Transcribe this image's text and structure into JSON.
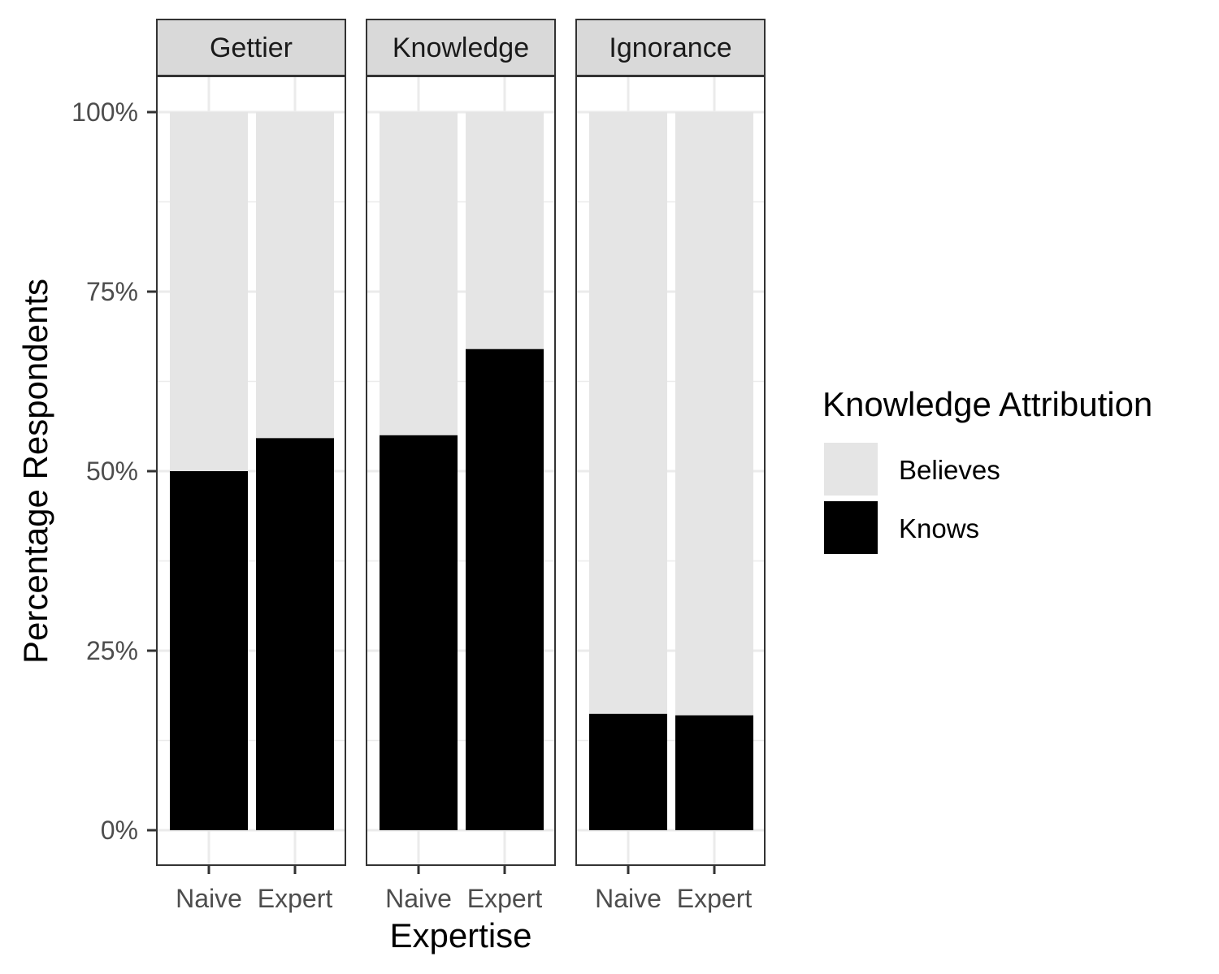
{
  "chart_data": {
    "type": "bar",
    "stacked": true,
    "facets": [
      "Gettier",
      "Knowledge",
      "Ignorance"
    ],
    "categories": [
      "Naive",
      "Expert"
    ],
    "xlabel": "Expertise",
    "ylabel": "Percentage Respondents",
    "ylim": [
      0,
      100
    ],
    "yticks": [
      "0%",
      "25%",
      "50%",
      "75%",
      "100%"
    ],
    "ytick_values": [
      0,
      25,
      50,
      75,
      100
    ],
    "legend": {
      "title": "Knowledge Attribution",
      "position": "right",
      "entries": [
        {
          "label": "Believes",
          "color": "#e5e5e5"
        },
        {
          "label": "Knows",
          "color": "#000000"
        }
      ]
    },
    "series": [
      {
        "name": "Knows",
        "color": "#000000",
        "values": {
          "Gettier": [
            50.0,
            54.6
          ],
          "Knowledge": [
            55.0,
            67.0
          ],
          "Ignorance": [
            16.2,
            16.0
          ]
        }
      },
      {
        "name": "Believes",
        "color": "#e5e5e5",
        "values": {
          "Gettier": [
            50.0,
            45.4
          ],
          "Knowledge": [
            45.0,
            33.0
          ],
          "Ignorance": [
            83.8,
            84.0
          ]
        }
      }
    ],
    "grid": true,
    "colors": {
      "panel_border": "#333333",
      "strip_fill": "#d9d9d9",
      "grid": "#ebebeb"
    }
  }
}
